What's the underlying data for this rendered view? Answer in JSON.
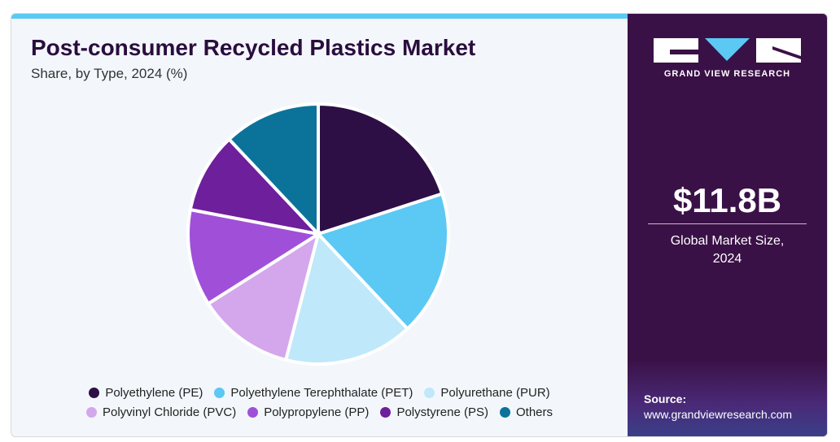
{
  "chart_data": {
    "type": "pie",
    "title": "Post-consumer Recycled Plastics Market",
    "subtitle": "Share, by Type, 2024 (%)",
    "categories": [
      "Polyethylene (PE)",
      "Polyethylene Terephthalate (PET)",
      "Polyurethane (PUR)",
      "Polyvinyl Chloride (PVC)",
      "Polypropylene (PP)",
      "Polystyrene (PS)",
      "Others"
    ],
    "values": [
      20,
      18,
      16,
      12,
      12,
      10,
      12
    ],
    "colors": [
      "#2d0f45",
      "#5cc8f4",
      "#bfe8fa",
      "#d4a7ec",
      "#a050d8",
      "#6e1f9b",
      "#0b7399"
    ]
  },
  "brand": "GRAND VIEW RESEARCH",
  "market_size": {
    "value": "$11.8B",
    "label": "Global Market Size, 2024"
  },
  "source": {
    "label": "Source:",
    "url": "www.grandviewresearch.com"
  }
}
